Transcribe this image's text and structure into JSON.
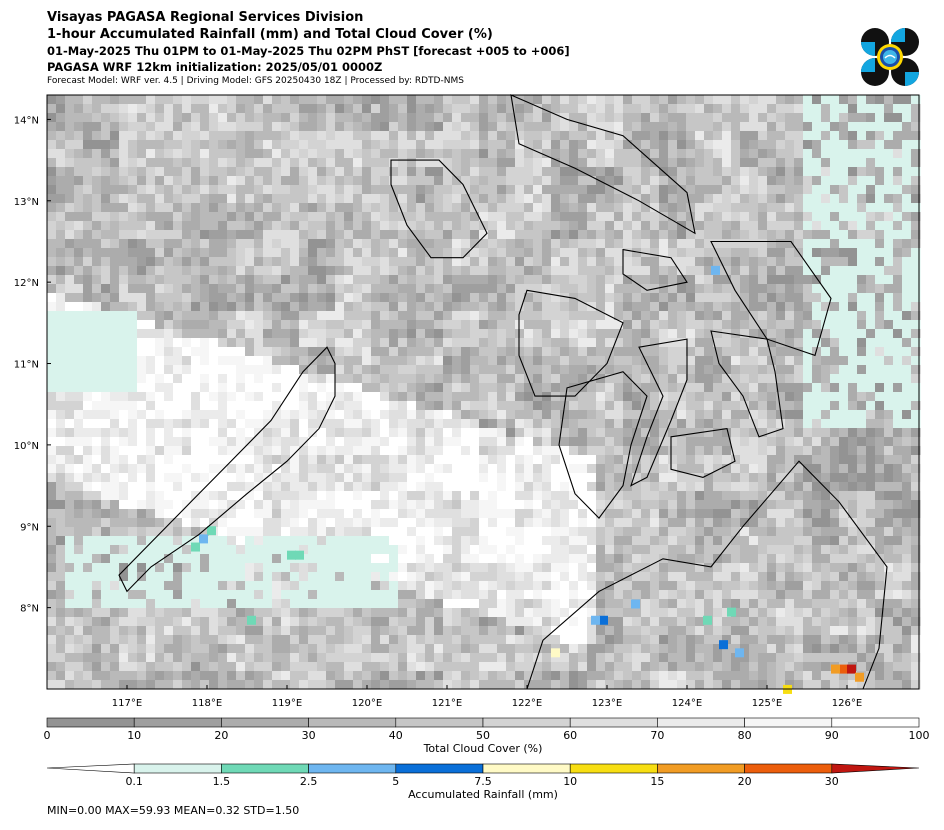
{
  "header": {
    "line1": "Visayas PAGASA Regional Services Division",
    "line2": "1-hour Accumulated Rainfall (mm) and Total Cloud Cover (%)",
    "line3": "01-May-2025 Thu 01PM to 01-May-2025 Thu 02PM PhST [forecast +005 to +006]",
    "line4": "PAGASA WRF 12km initialization: 2025/05/01 0000Z",
    "line5": "Forecast Model: WRF ver. 4.5 | Driving Model: GFS 20250430 18Z | Processed by: RDTD-NMS"
  },
  "map": {
    "lon_range": [
      116.0,
      126.9
    ],
    "lat_range": [
      7.0,
      14.3
    ],
    "lon_ticks": [
      "117°E",
      "118°E",
      "119°E",
      "120°E",
      "121°E",
      "122°E",
      "123°E",
      "124°E",
      "125°E",
      "126°E"
    ],
    "lat_ticks": [
      "14°N",
      "13°N",
      "12°N",
      "11°N",
      "10°N",
      "9°N",
      "8°N"
    ],
    "icon": "pagasa-logo"
  },
  "cloud_colorbar": {
    "label": "Total Cloud Cover (%)",
    "ticks": [
      "0",
      "10",
      "20",
      "30",
      "40",
      "50",
      "60",
      "70",
      "80",
      "90",
      "100"
    ],
    "colors": [
      "#939393",
      "#9f9f9f",
      "#acacac",
      "#b9b9b9",
      "#c6c6c6",
      "#d3d3d3",
      "#dfdfdf",
      "#ebebeb",
      "#f6f6f6",
      "#ffffff"
    ]
  },
  "rain_colorbar": {
    "label": "Accumulated Rainfall (mm)",
    "ticks": [
      "0.1",
      "1.5",
      "2.5",
      "5",
      "7.5",
      "10",
      "15",
      "20",
      "30"
    ],
    "colors": [
      "#d9f3ec",
      "#6fd9b6",
      "#6eb6f0",
      "#0a6fd8",
      "#fffac6",
      "#f7de12",
      "#f19c24",
      "#ec5e0c",
      "#c01610"
    ]
  },
  "stats": "MIN=0.00   MAX=59.93   MEAN=0.32   STD=1.50"
}
